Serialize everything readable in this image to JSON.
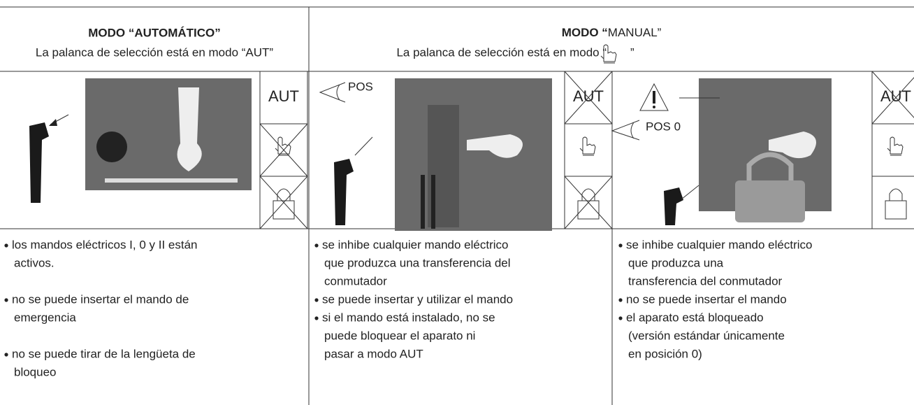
{
  "automatic": {
    "title": "MODO “AUTOMÁTICO”",
    "subtitle": "La palanca de selección está en modo “AUT”",
    "icon_label": "AUT",
    "bullets": [
      [
        "los mandos eléctricos I, 0 y II están",
        "activos."
      ],
      [
        "no se puede insertar el mando de",
        "emergencia"
      ],
      [
        "no se puede tirar de la lengüeta de",
        "bloqueo"
      ]
    ]
  },
  "manual": {
    "title_bold": "MODO “",
    "title_rest": "MANUAL”",
    "subtitle_before": "La palanca de selección está en modo “",
    "subtitle_after": "”",
    "panels": [
      {
        "view_label": "POS",
        "icon_label": "AUT",
        "bullets": [
          [
            "se inhibe cualquier mando eléctrico",
            "que produzca una transferencia del",
            "conmutador"
          ],
          [
            "se puede insertar y utilizar el mando"
          ],
          [
            "si el mando está instalado, no se",
            "puede bloquear el aparato ni",
            "pasar a modo AUT"
          ]
        ]
      },
      {
        "view_label": "POS 0",
        "icon_label": "AUT",
        "bullets": [
          [
            "se inhibe cualquier mando eléctrico",
            "que produzca una",
            "transferencia del conmutador"
          ],
          [
            "no se puede insertar el mando"
          ],
          [
            "el aparato está bloqueado",
            "(versión estándar únicamente",
            "en posición 0)"
          ]
        ]
      }
    ]
  }
}
